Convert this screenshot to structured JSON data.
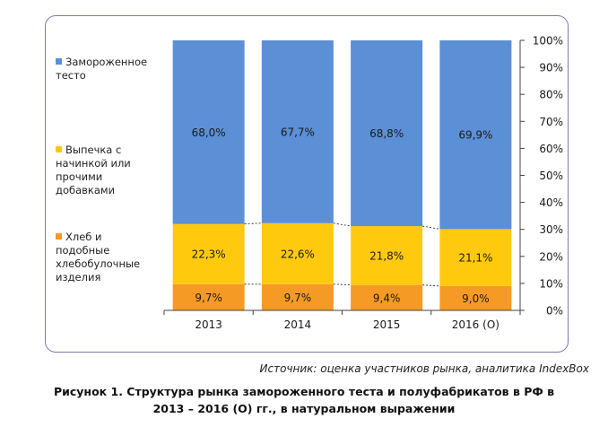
{
  "chart_data": {
    "type": "bar",
    "stacked": true,
    "categories": [
      "2013",
      "2014",
      "2015",
      "2016 (О)"
    ],
    "series": [
      {
        "name": "Хлеб и подобные хлебобулочные изделия",
        "values": [
          9.7,
          9.7,
          9.4,
          9.0
        ],
        "labels": [
          "9,7%",
          "9,7%",
          "9,4%",
          "9,0%"
        ],
        "color": "#f59a25"
      },
      {
        "name": "Выпечка с начинкой или прочими добавками",
        "values": [
          22.3,
          22.6,
          21.8,
          21.1
        ],
        "labels": [
          "22,3%",
          "22,6%",
          "21,8%",
          "21,1%"
        ],
        "color": "#ffc90e"
      },
      {
        "name": "Замороженное тесто",
        "values": [
          68.0,
          67.7,
          68.8,
          69.9
        ],
        "labels": [
          "68,0%",
          "67,7%",
          "68,8%",
          "69,9%"
        ],
        "color": "#5b8fd6"
      }
    ],
    "y_ticks": [
      "0%",
      "10%",
      "20%",
      "30%",
      "40%",
      "50%",
      "60%",
      "70%",
      "80%",
      "90%",
      "100%"
    ],
    "ylim": [
      0,
      100
    ],
    "y_axis_side": "right",
    "legend_position": "left",
    "connector_lines": "dashed"
  },
  "legend": [
    {
      "lines": [
        "Замороженное",
        "тесто"
      ],
      "color": "#5b8fd6"
    },
    {
      "lines": [
        "Выпечка с",
        "начинкой или",
        "прочими",
        "добавками"
      ],
      "color": "#ffc90e"
    },
    {
      "lines": [
        "Хлеб и",
        "подобные",
        "хлебобулочные",
        "изделия"
      ],
      "color": "#f59a25"
    }
  ],
  "source": "Источник: оценка участников рынка, аналитика IndexBox",
  "caption_line1": "Рисунок 1. Структура рынка замороженного теста и полуфабрикатов в РФ в",
  "caption_line2": "2013 – 2016 (О) гг., в натуральном выражении"
}
